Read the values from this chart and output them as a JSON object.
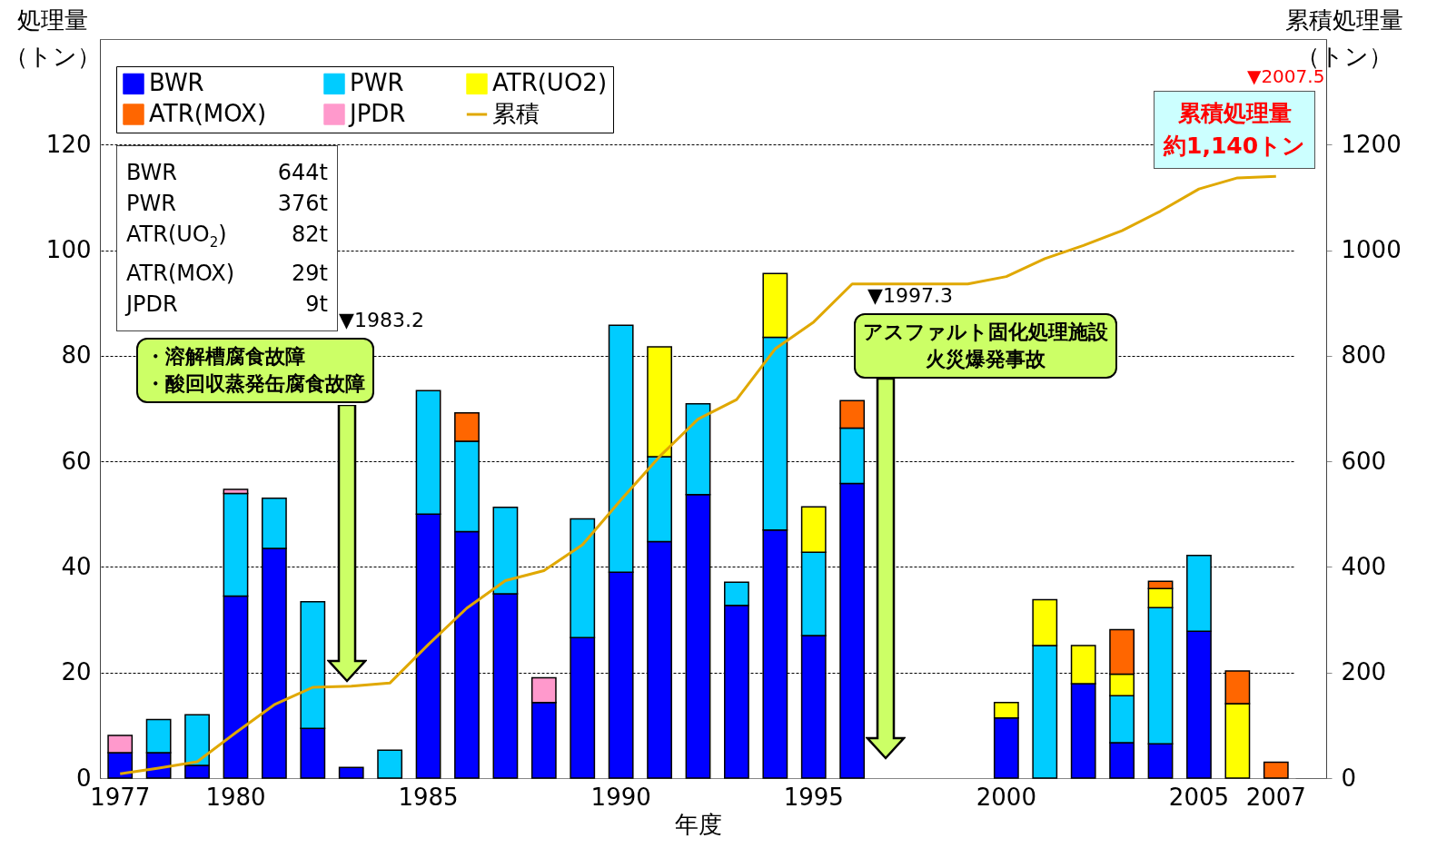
{
  "chart_data": {
    "type": "bar",
    "stacked": true,
    "categories": [
      "1977",
      null,
      null,
      "1980",
      null,
      null,
      null,
      null,
      "1985",
      null,
      null,
      null,
      null,
      "1990",
      null,
      null,
      null,
      null,
      "1995",
      null,
      null,
      null,
      null,
      "2000",
      null,
      null,
      null,
      null,
      "2005",
      null,
      "2007"
    ],
    "series": [
      {
        "name": "BWR",
        "color": "#0000ff",
        "values": [
          4.8,
          4.8,
          2.4,
          34.5,
          43.5,
          9.4,
          2.0,
          null,
          50.0,
          46.7,
          34.9,
          14.3,
          26.6,
          39.0,
          44.8,
          53.7,
          32.7,
          47.0,
          27.0,
          55.8,
          null,
          null,
          null,
          11.4,
          null,
          17.9,
          6.7,
          6.5,
          27.8,
          null,
          null
        ]
      },
      {
        "name": "PWR",
        "color": "#00ccff",
        "values": [
          null,
          6.3,
          9.6,
          19.4,
          9.5,
          24.0,
          null,
          5.3,
          23.4,
          17.1,
          16.4,
          null,
          22.5,
          46.8,
          16.1,
          17.2,
          4.4,
          36.5,
          15.8,
          10.5,
          null,
          null,
          null,
          null,
          25.1,
          null,
          8.9,
          25.8,
          14.4,
          null,
          null
        ]
      },
      {
        "name": "ATR(UO2)",
        "color": "#ffff00",
        "values": [
          null,
          null,
          null,
          null,
          null,
          null,
          null,
          null,
          null,
          null,
          null,
          null,
          null,
          null,
          20.8,
          null,
          null,
          12.1,
          8.6,
          null,
          null,
          null,
          null,
          2.9,
          8.7,
          7.2,
          4.1,
          3.6,
          null,
          14.1,
          null
        ]
      },
      {
        "name": "ATR(MOX)",
        "color": "#ff6600",
        "values": [
          null,
          null,
          null,
          null,
          null,
          null,
          null,
          null,
          null,
          5.4,
          null,
          null,
          null,
          null,
          null,
          null,
          null,
          null,
          null,
          5.2,
          null,
          null,
          null,
          null,
          null,
          null,
          8.4,
          1.4,
          null,
          6.2,
          3.0
        ]
      },
      {
        "name": "JPDR",
        "color": "#ff99cc",
        "values": [
          3.3,
          null,
          null,
          0.8,
          null,
          null,
          null,
          null,
          null,
          null,
          null,
          4.7,
          null,
          null,
          null,
          null,
          null,
          null,
          null,
          null,
          null,
          null,
          null,
          null,
          null,
          null,
          null,
          null,
          null,
          null,
          null
        ]
      },
      {
        "name": "累積",
        "type": "line",
        "axis": "y2",
        "color": "#e0a800",
        "values": [
          8,
          19,
          31,
          86,
          139,
          172,
          174,
          180,
          253,
          322,
          374,
          393,
          442,
          527,
          609,
          680,
          717,
          813,
          864,
          936,
          936,
          936,
          936,
          950,
          984,
          1009,
          1037,
          1074,
          1116,
          1137,
          1140
        ]
      }
    ],
    "xlabel": "年度",
    "ylabel": "処理量（トン）",
    "y2label": "累積処理量（トン）",
    "ylim": [
      0,
      140
    ],
    "yticks": [
      0,
      20,
      40,
      60,
      80,
      100,
      120
    ],
    "y2lim": [
      0,
      1400
    ],
    "y2ticks": [
      0,
      200,
      400,
      600,
      800,
      1000,
      1200
    ],
    "grid": "y",
    "legend": "top left",
    "annotations": [
      "▼1983.2",
      "・溶解槽腐食故障",
      "・酸回収蒸発缶腐食故障",
      "▼1997.3",
      "アスファルト固化処理施設",
      "火災爆発事故",
      "▼2007.5",
      "累積処理量",
      "約1,140トン",
      "BWR 644t",
      "PWR 376t",
      "ATR(UO$_{2}$) 82t",
      "ATR(MOX) 29t",
      "JPDR 9t"
    ]
  }
}
